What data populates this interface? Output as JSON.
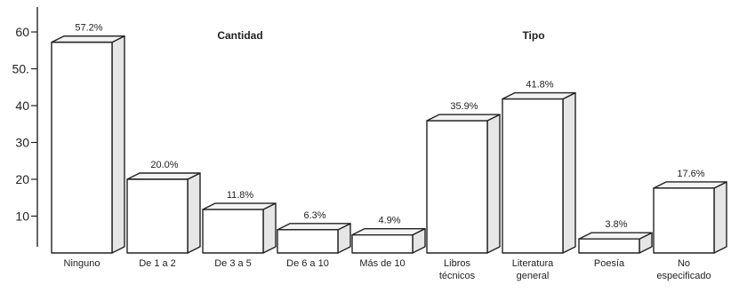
{
  "chart_data": {
    "type": "bar",
    "style": "3d-bars",
    "ylim": [
      0,
      60
    ],
    "yticks": [
      10,
      20,
      30,
      40,
      50,
      60
    ],
    "ytick_labels": [
      "10",
      "20",
      "30",
      "40",
      "50.",
      "60"
    ],
    "groups": [
      {
        "label": "Cantidad",
        "categories": [
          0,
          1,
          2,
          3,
          4
        ]
      },
      {
        "label": "Tipo",
        "categories": [
          5,
          6,
          7,
          8
        ]
      }
    ],
    "categories": [
      {
        "label": [
          "Ninguno"
        ],
        "value": 57.2,
        "value_label": "57.2%"
      },
      {
        "label": [
          "De 1 a 2"
        ],
        "value": 20.0,
        "value_label": "20.0%"
      },
      {
        "label": [
          "De 3 a 5"
        ],
        "value": 11.8,
        "value_label": "11.8%"
      },
      {
        "label": [
          "De 6 a 10"
        ],
        "value": 6.3,
        "value_label": "6.3%"
      },
      {
        "label": [
          "Más de 10"
        ],
        "value": 4.9,
        "value_label": "4.9%"
      },
      {
        "label": [
          "Libros",
          "técnicos"
        ],
        "value": 35.9,
        "value_label": "35.9%"
      },
      {
        "label": [
          "Literatura",
          "general"
        ],
        "value": 41.8,
        "value_label": "41.8%"
      },
      {
        "label": [
          "Poesía"
        ],
        "value": 3.8,
        "value_label": "3.8%"
      },
      {
        "label": [
          "No",
          "especificado"
        ],
        "value": 17.6,
        "value_label": "17.6%"
      }
    ]
  }
}
